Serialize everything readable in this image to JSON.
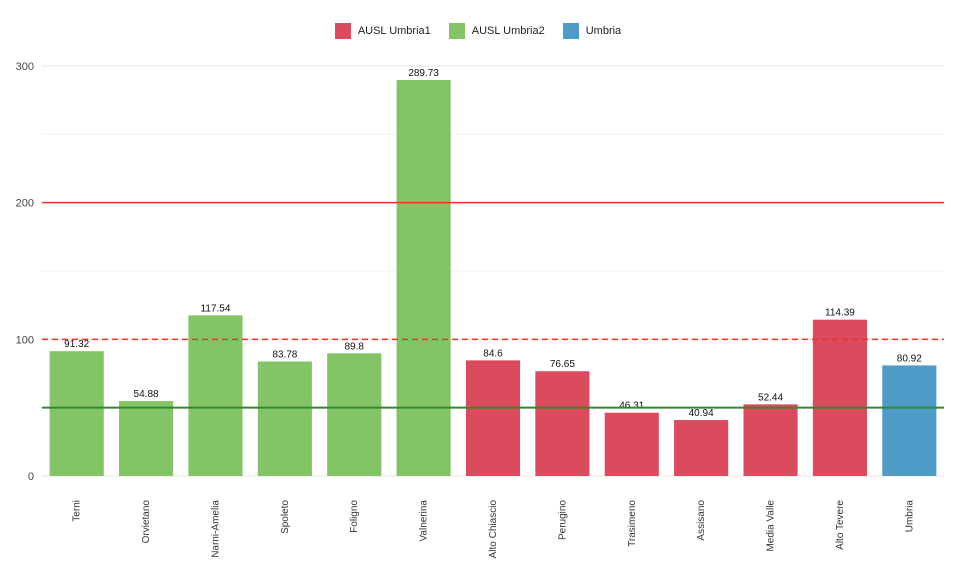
{
  "chart_data": {
    "type": "bar",
    "categories": [
      "Terni",
      "Orvietano",
      "Narni-Amelia",
      "Spoleto",
      "Foligno",
      "Valnerina",
      "Alto Chiascio",
      "Perugino",
      "Trasimeno",
      "Assisano",
      "Media Valle",
      "Alto Tevere",
      "Umbria"
    ],
    "values": [
      91.32,
      54.88,
      117.54,
      83.78,
      89.8,
      289.73,
      84.6,
      76.65,
      46.31,
      40.94,
      52.44,
      114.39,
      80.92
    ],
    "value_labels": [
      "91.32",
      "54.88",
      "117.54",
      "83.78",
      "89.8",
      "289.73",
      "84.6",
      "76.65",
      "46.31",
      "40.94",
      "52.44",
      "114.39",
      "80.92"
    ],
    "groups": [
      "AUSL Umbria2",
      "AUSL Umbria2",
      "AUSL Umbria2",
      "AUSL Umbria2",
      "AUSL Umbria2",
      "AUSL Umbria2",
      "AUSL Umbria1",
      "AUSL Umbria1",
      "AUSL Umbria1",
      "AUSL Umbria1",
      "AUSL Umbria1",
      "AUSL Umbria1",
      "Umbria"
    ],
    "legend": [
      {
        "label": "AUSL Umbria1",
        "color": "#dc4a5e"
      },
      {
        "label": "AUSL Umbria2",
        "color": "#82c466"
      },
      {
        "label": "Umbria",
        "color": "#4f9bc7"
      }
    ],
    "legend_position": "top-center",
    "ylim": [
      0,
      320
    ],
    "yticks": [
      0,
      100,
      200,
      300
    ],
    "ytick_labels": [
      "0",
      "100",
      "200",
      "300"
    ],
    "reference_lines": [
      {
        "value": 200,
        "color": "#ee3322",
        "style": "solid"
      },
      {
        "value": 100,
        "color": "#ee3322",
        "style": "dashed"
      },
      {
        "value": 50,
        "color": "#2f8a2f",
        "style": "solid"
      }
    ],
    "grid": true,
    "title": "",
    "xlabel": "",
    "ylabel": ""
  }
}
